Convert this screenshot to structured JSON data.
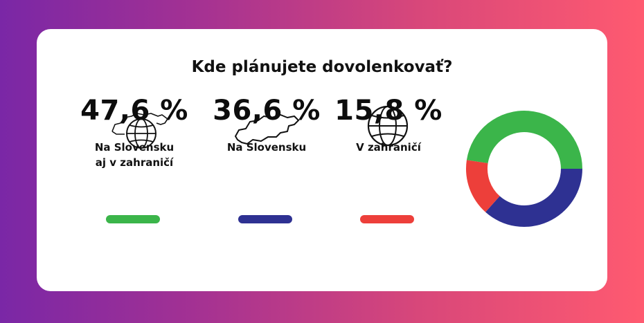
{
  "title": "Kde plánujete dovolenkovať?",
  "chart_data": {
    "type": "pie",
    "title": "Kde plánujete dovolenkovať?",
    "unit": "%",
    "categories": [
      "Na Slovensku aj v zahraničí",
      "Na Slovensku",
      "V zahraničí"
    ],
    "values": [
      47.6,
      36.6,
      15.8
    ],
    "colors": [
      "#3bb54a",
      "#2e3192",
      "#ed3f3a"
    ],
    "style": "donut"
  },
  "stats": [
    {
      "value": "47,6 %",
      "label_line1": "Na Slovensku",
      "label_line2": "aj v zahraničí",
      "icon": "slovakia-globe-icon",
      "color": "#3bb54a"
    },
    {
      "value": "36,6 %",
      "label_line1": "Na Slovensku",
      "label_line2": "",
      "icon": "slovakia-map-icon",
      "color": "#2e3192"
    },
    {
      "value": "15,8 %",
      "label_line1": "V zahraničí",
      "label_line2": "",
      "icon": "globe-icon",
      "color": "#ed3f3a"
    }
  ]
}
